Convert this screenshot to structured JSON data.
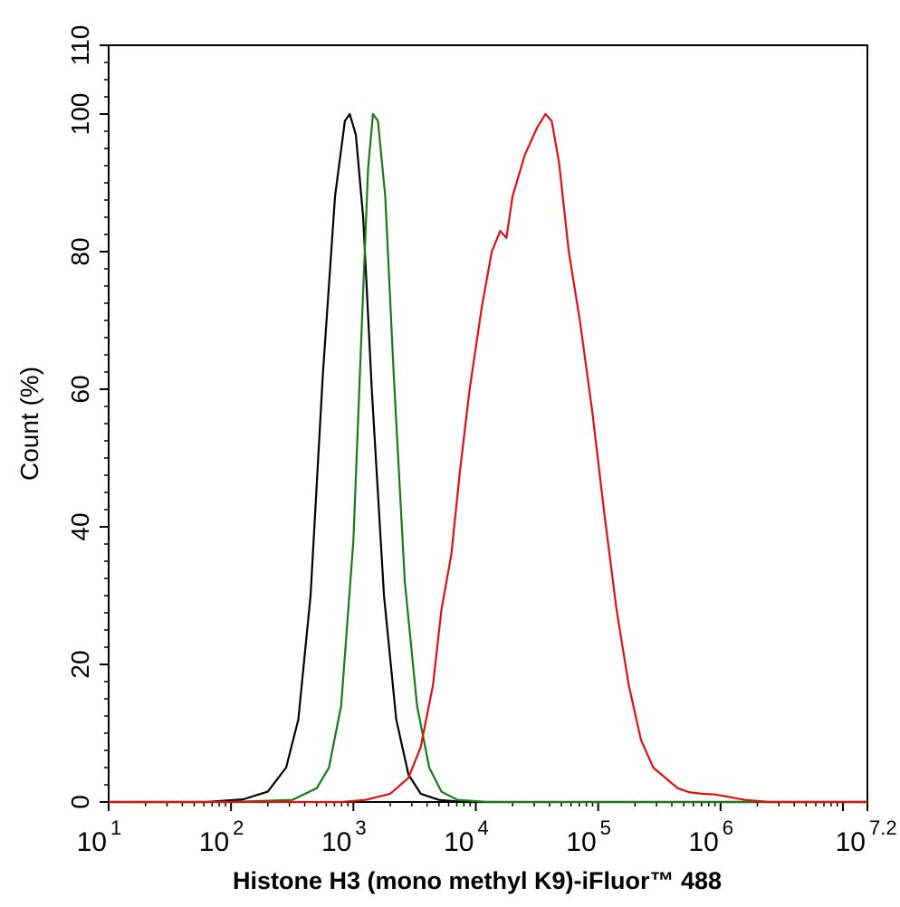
{
  "chart_data": {
    "type": "line",
    "title": "",
    "xlabel": "Histone H3 (mono methyl K9)-iFluor™ 488",
    "ylabel": "Count  (%)",
    "x_scale": "log10",
    "xlim_exponent": [
      1,
      7.2
    ],
    "ylim": [
      0,
      110
    ],
    "grid": false,
    "x_tick_labels": [
      {
        "base": "10",
        "exp": "1",
        "value": 1
      },
      {
        "base": "10",
        "exp": "2",
        "value": 2
      },
      {
        "base": "10",
        "exp": "3",
        "value": 3
      },
      {
        "base": "10",
        "exp": "4",
        "value": 4
      },
      {
        "base": "10",
        "exp": "5",
        "value": 5
      },
      {
        "base": "10",
        "exp": "6",
        "value": 6
      },
      {
        "base": "10",
        "exp": "7.2",
        "value": 7.2
      }
    ],
    "y_tick_labels": [
      "0",
      "20",
      "40",
      "60",
      "80",
      "100",
      "110"
    ],
    "y_tick_values": [
      0,
      20,
      40,
      60,
      80,
      100,
      110
    ],
    "series": [
      {
        "color": "#000000",
        "points": [
          [
            1.0,
            0
          ],
          [
            1.8,
            0
          ],
          [
            2.1,
            0.4
          ],
          [
            2.3,
            1.5
          ],
          [
            2.45,
            5
          ],
          [
            2.55,
            12
          ],
          [
            2.65,
            30
          ],
          [
            2.75,
            62
          ],
          [
            2.85,
            88
          ],
          [
            2.93,
            99
          ],
          [
            2.97,
            100
          ],
          [
            3.02,
            97
          ],
          [
            3.08,
            85
          ],
          [
            3.15,
            60
          ],
          [
            3.25,
            30
          ],
          [
            3.35,
            12
          ],
          [
            3.45,
            4
          ],
          [
            3.55,
            1.2
          ],
          [
            3.7,
            0.3
          ],
          [
            3.9,
            0
          ],
          [
            7.2,
            0
          ]
        ]
      },
      {
        "color": "#1a7a1a",
        "points": [
          [
            1.0,
            0
          ],
          [
            2.0,
            0
          ],
          [
            2.5,
            0.3
          ],
          [
            2.7,
            2
          ],
          [
            2.8,
            5
          ],
          [
            2.9,
            14
          ],
          [
            3.0,
            38
          ],
          [
            3.07,
            70
          ],
          [
            3.12,
            92
          ],
          [
            3.16,
            100
          ],
          [
            3.2,
            99
          ],
          [
            3.26,
            88
          ],
          [
            3.33,
            62
          ],
          [
            3.42,
            32
          ],
          [
            3.52,
            14
          ],
          [
            3.62,
            5
          ],
          [
            3.72,
            1.5
          ],
          [
            3.85,
            0.3
          ],
          [
            4.1,
            0
          ],
          [
            7.2,
            0
          ]
        ]
      },
      {
        "color": "#e01010",
        "points": [
          [
            1.0,
            0
          ],
          [
            2.9,
            0
          ],
          [
            3.1,
            0.3
          ],
          [
            3.3,
            1.2
          ],
          [
            3.45,
            3.5
          ],
          [
            3.55,
            8
          ],
          [
            3.65,
            17
          ],
          [
            3.72,
            28
          ],
          [
            3.8,
            36
          ],
          [
            3.87,
            48
          ],
          [
            3.95,
            60
          ],
          [
            4.05,
            72
          ],
          [
            4.13,
            80
          ],
          [
            4.2,
            83
          ],
          [
            4.25,
            82
          ],
          [
            4.3,
            88
          ],
          [
            4.4,
            94
          ],
          [
            4.5,
            98
          ],
          [
            4.57,
            100
          ],
          [
            4.62,
            99
          ],
          [
            4.68,
            93
          ],
          [
            4.76,
            80
          ],
          [
            4.85,
            70
          ],
          [
            4.95,
            57
          ],
          [
            5.05,
            42
          ],
          [
            5.15,
            28
          ],
          [
            5.25,
            17
          ],
          [
            5.35,
            9
          ],
          [
            5.45,
            5
          ],
          [
            5.55,
            3.5
          ],
          [
            5.65,
            2
          ],
          [
            5.75,
            1.4
          ],
          [
            5.85,
            1.2
          ],
          [
            5.95,
            1.1
          ],
          [
            6.05,
            0.8
          ],
          [
            6.2,
            0.3
          ],
          [
            6.4,
            0
          ],
          [
            7.2,
            0
          ]
        ]
      }
    ]
  }
}
